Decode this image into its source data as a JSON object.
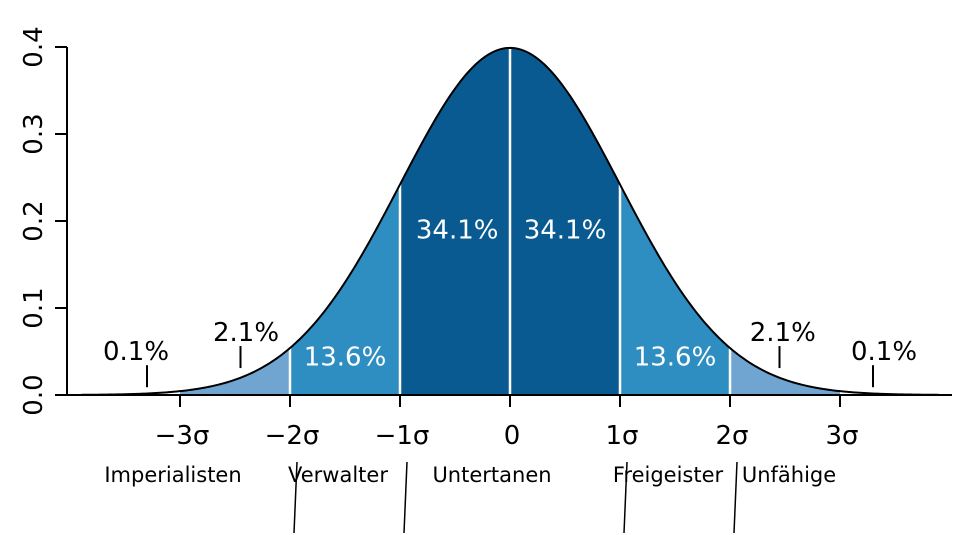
{
  "chart_data": {
    "type": "area",
    "title": "",
    "xlabel": "",
    "ylabel": "",
    "xlim": [
      -3.9,
      3.9
    ],
    "ylim": [
      0.0,
      0.4
    ],
    "y_ticks": [
      "0.0",
      "0.1",
      "0.2",
      "0.3",
      "0.4"
    ],
    "x_ticks": [
      {
        "x": -3,
        "label": "−3σ"
      },
      {
        "x": -2,
        "label": "−2σ"
      },
      {
        "x": -1,
        "label": "−1σ"
      },
      {
        "x": 0,
        "label": "0"
      },
      {
        "x": 1,
        "label": "1σ"
      },
      {
        "x": 2,
        "label": "2σ"
      },
      {
        "x": 3,
        "label": "3σ"
      }
    ],
    "curve": "normal-distribution",
    "bands": [
      {
        "from": -3,
        "to": -2,
        "color": "#6fa5d0"
      },
      {
        "from": -2,
        "to": -1,
        "color": "#2e8dc1"
      },
      {
        "from": -1,
        "to": 0,
        "color": "#0a5a92"
      },
      {
        "from": 0,
        "to": 1,
        "color": "#0a5a92"
      },
      {
        "from": 1,
        "to": 2,
        "color": "#2e8dc1"
      },
      {
        "from": 2,
        "to": 3,
        "color": "#6fa5d0"
      }
    ],
    "percent_labels": [
      {
        "text": "0.1%",
        "x": -3.4,
        "y": 0.04,
        "color": "black",
        "marker_x": -3.3
      },
      {
        "text": "2.1%",
        "x": -2.4,
        "y": 0.062,
        "color": "black",
        "marker_x": -2.45
      },
      {
        "text": "13.6%",
        "x": -1.5,
        "y": 0.034,
        "color": "white"
      },
      {
        "text": "34.1%",
        "x": -0.48,
        "y": 0.18,
        "color": "white"
      },
      {
        "text": "34.1%",
        "x": 0.5,
        "y": 0.18,
        "color": "white"
      },
      {
        "text": "13.6%",
        "x": 1.5,
        "y": 0.034,
        "color": "white"
      },
      {
        "text": "2.1%",
        "x": 2.48,
        "y": 0.062,
        "color": "black",
        "marker_x": 2.45
      },
      {
        "text": "0.1%",
        "x": 3.4,
        "y": 0.04,
        "color": "black",
        "marker_x": 3.3
      }
    ],
    "group_labels": [
      {
        "text": "Imperialisten",
        "x": -3
      },
      {
        "text": "Verwalter",
        "x": -1.5
      },
      {
        "text": "Untertanen",
        "x": -0.1
      },
      {
        "text": "Freigeister",
        "x": 1.5
      },
      {
        "text": "Unfähige",
        "x": 2.6
      }
    ],
    "group_dividers": [
      -2,
      -1,
      1,
      2
    ]
  }
}
